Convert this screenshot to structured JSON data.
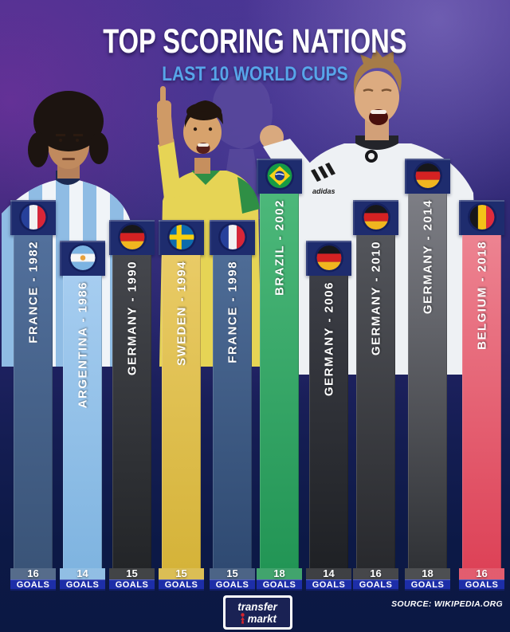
{
  "header": {
    "title": "TOP SCORING NATIONS",
    "subtitle": "LAST 10 WORLD CUPS"
  },
  "chart_data": {
    "type": "bar",
    "title": "TOP SCORING NATIONS",
    "subtitle": "LAST 10 WORLD CUPS",
    "unit": "GOALS",
    "ylim": [
      0,
      18
    ],
    "categories": [
      "FRANCE - 1982",
      "ARGENTINA - 1986",
      "GERMANY - 1990",
      "SWEDEN - 1994",
      "FRANCE - 1998",
      "BRAZIL - 2002",
      "GERMANY - 2006",
      "GERMANY - 2010",
      "GERMANY - 2014",
      "BELGIUM - 2018"
    ],
    "values": [
      16,
      14,
      15,
      15,
      15,
      18,
      14,
      16,
      18,
      16
    ],
    "bars": [
      {
        "label": "FRANCE - 1982",
        "nation": "FRANCE",
        "year": "1982",
        "goals": 16,
        "flag": "france",
        "color_top": "#52709c",
        "color_bottom": "#3a5478"
      },
      {
        "label": "ARGENTINA - 1986",
        "nation": "ARGENTINA",
        "year": "1986",
        "goals": 14,
        "flag": "argentina",
        "color_top": "#a6cdf0",
        "color_bottom": "#7fb4e0"
      },
      {
        "label": "GERMANY - 1990",
        "nation": "GERMANY",
        "year": "1990",
        "goals": 15,
        "flag": "germany",
        "color_top": "#45474d",
        "color_bottom": "#232528"
      },
      {
        "label": "SWEDEN - 1994",
        "nation": "SWEDEN",
        "year": "1994",
        "goals": 15,
        "flag": "sweden",
        "color_top": "#e9cb66",
        "color_bottom": "#d5b339"
      },
      {
        "label": "FRANCE - 1998",
        "nation": "FRANCE",
        "year": "1998",
        "goals": 15,
        "flag": "france",
        "color_top": "#4e6c96",
        "color_bottom": "#2f4a72"
      },
      {
        "label": "BRAZIL - 2002",
        "nation": "BRAZIL",
        "year": "2002",
        "goals": 18,
        "flag": "brazil",
        "color_top": "#4cb87a",
        "color_bottom": "#229555"
      },
      {
        "label": "GERMANY - 2006",
        "nation": "GERMANY",
        "year": "2006",
        "goals": 14,
        "flag": "germany",
        "color_top": "#3c3e46",
        "color_bottom": "#1f2125"
      },
      {
        "label": "GERMANY - 2010",
        "nation": "GERMANY",
        "year": "2010",
        "goals": 16,
        "flag": "germany",
        "color_top": "#53555b",
        "color_bottom": "#28292d"
      },
      {
        "label": "GERMANY - 2014",
        "nation": "GERMANY",
        "year": "2014",
        "goals": 18,
        "flag": "germany",
        "color_top": "#7d7e85",
        "color_bottom": "#303236"
      },
      {
        "label": "BELGIUM - 2018",
        "nation": "BELGIUM",
        "year": "2018",
        "goals": 16,
        "flag": "belgium",
        "color_top": "#ed8391",
        "color_bottom": "#dd4257"
      }
    ]
  },
  "palette": {
    "cap_navy": "#1e2c6e",
    "goals_blue": "#1d2ea8",
    "subtitle_blue": "#57a5e9",
    "background_top": "#46318e",
    "background_bottom": "#0b1843"
  },
  "footer": {
    "source": "SOURCE: WIKIPEDIA.ORG",
    "logo_line1": "transfer",
    "logo_line2": "markt"
  }
}
